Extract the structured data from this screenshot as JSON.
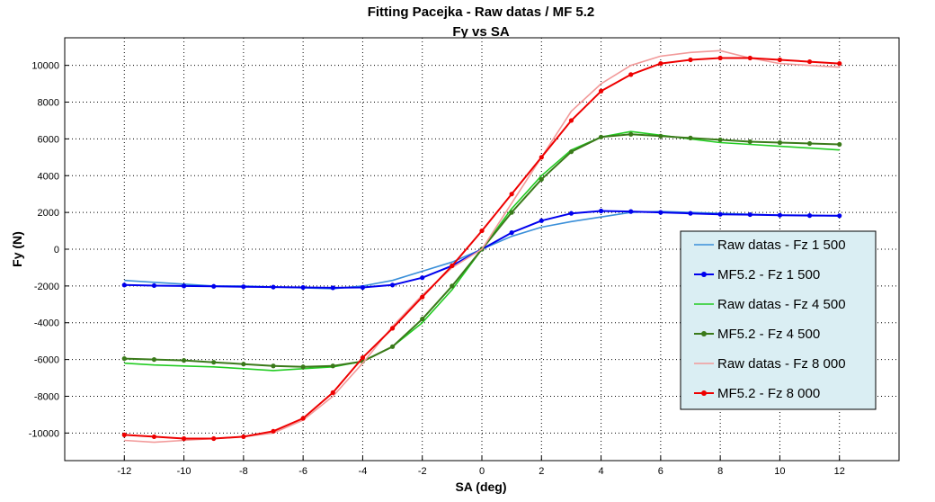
{
  "chart_data": {
    "type": "line",
    "title": "Fitting Pacejka - Raw datas / MF 5.2",
    "subtitle": "Fy vs SA",
    "xlabel": "SA (deg)",
    "ylabel": "Fy (N)",
    "xlim": [
      -14,
      14
    ],
    "ylim": [
      -11500,
      11500
    ],
    "xticks": [
      -12,
      -10,
      -8,
      -6,
      -4,
      -2,
      0,
      2,
      4,
      6,
      8,
      10,
      12
    ],
    "yticks": [
      -10000,
      -8000,
      -6000,
      -4000,
      -2000,
      0,
      2000,
      4000,
      6000,
      8000,
      10000
    ],
    "grid": true,
    "legend_position": "right",
    "x": [
      -12,
      -11,
      -10,
      -9,
      -8,
      -7,
      -6,
      -5,
      -4,
      -3,
      -2,
      -1,
      0,
      1,
      2,
      3,
      4,
      5,
      6,
      7,
      8,
      9,
      10,
      11,
      12
    ],
    "series": [
      {
        "name": "Raw datas - Fz 1 500",
        "kind": "raw",
        "color": "#3a8fd9",
        "values": [
          -1700,
          -1800,
          -1900,
          -2000,
          -2000,
          -2050,
          -2100,
          -2150,
          -2000,
          -1700,
          -1200,
          -700,
          0,
          700,
          1200,
          1500,
          1750,
          2000,
          2050,
          2000,
          1950,
          1900,
          1850,
          1850,
          1800
        ]
      },
      {
        "name": "MF5.2 - Fz 1 500",
        "kind": "fit",
        "color": "#0000ee",
        "values": [
          -1950,
          -1980,
          -2000,
          -2020,
          -2040,
          -2060,
          -2080,
          -2100,
          -2080,
          -1950,
          -1550,
          -900,
          0,
          900,
          1550,
          1950,
          2080,
          2050,
          2000,
          1950,
          1900,
          1880,
          1850,
          1830,
          1820
        ]
      },
      {
        "name": "Raw datas - Fz 4 500",
        "kind": "raw",
        "color": "#22cc22",
        "values": [
          -6200,
          -6300,
          -6350,
          -6400,
          -6500,
          -6600,
          -6500,
          -6400,
          -6100,
          -5300,
          -4000,
          -2200,
          0,
          2200,
          4000,
          5400,
          6100,
          6400,
          6200,
          6000,
          5800,
          5700,
          5600,
          5500,
          5400
        ]
      },
      {
        "name": "MF5.2 - Fz 4 500",
        "kind": "fit",
        "color": "#3a7a1a",
        "values": [
          -5950,
          -6000,
          -6050,
          -6150,
          -6250,
          -6350,
          -6400,
          -6350,
          -6100,
          -5300,
          -3800,
          -2000,
          0,
          2000,
          3800,
          5300,
          6100,
          6250,
          6150,
          6050,
          5950,
          5850,
          5800,
          5750,
          5700
        ]
      },
      {
        "name": "Raw datas - Fz 8 000",
        "kind": "raw",
        "color": "#f29a9a",
        "values": [
          -10400,
          -10500,
          -10400,
          -10300,
          -10200,
          -10000,
          -9300,
          -8000,
          -6200,
          -4200,
          -2500,
          -1000,
          0,
          2500,
          5000,
          7500,
          9000,
          10000,
          10500,
          10700,
          10800,
          10400,
          10100,
          10000,
          9900
        ]
      },
      {
        "name": "MF5.2 - Fz 8 000",
        "kind": "fit",
        "color": "#ee0000",
        "values": [
          -10100,
          -10200,
          -10300,
          -10300,
          -10200,
          -9900,
          -9200,
          -7800,
          -5900,
          -4300,
          -2600,
          -900,
          1000,
          3000,
          5000,
          7000,
          8600,
          9500,
          10100,
          10300,
          10400,
          10400,
          10300,
          10200,
          10100
        ]
      }
    ]
  }
}
